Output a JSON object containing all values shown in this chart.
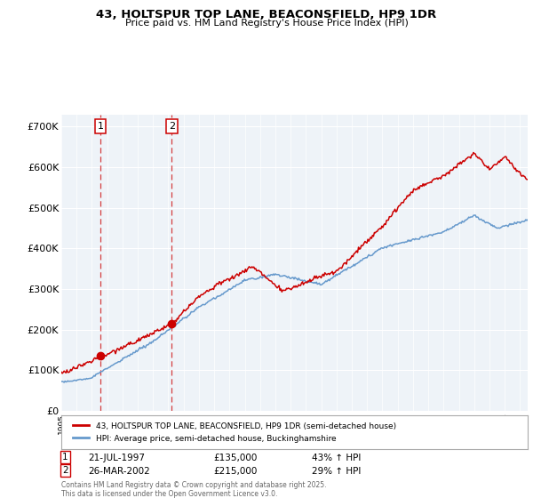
{
  "title_line1": "43, HOLTSPUR TOP LANE, BEACONSFIELD, HP9 1DR",
  "title_line2": "Price paid vs. HM Land Registry's House Price Index (HPI)",
  "legend_line1": "43, HOLTSPUR TOP LANE, BEACONSFIELD, HP9 1DR (semi-detached house)",
  "legend_line2": "HPI: Average price, semi-detached house, Buckinghamshire",
  "sale1_date": "21-JUL-1997",
  "sale1_price": "£135,000",
  "sale1_hpi": "43% ↑ HPI",
  "sale1_year": 1997.55,
  "sale1_value": 135000,
  "sale2_date": "26-MAR-2002",
  "sale2_price": "£215,000",
  "sale2_hpi": "29% ↑ HPI",
  "sale2_year": 2002.23,
  "sale2_value": 215000,
  "footer": "Contains HM Land Registry data © Crown copyright and database right 2025.\nThis data is licensed under the Open Government Licence v3.0.",
  "red_color": "#cc0000",
  "blue_color": "#6699cc",
  "background_color": "#eef3f8",
  "ylim": [
    0,
    730000
  ],
  "xlim_start": 1995,
  "xlim_end": 2025.5
}
